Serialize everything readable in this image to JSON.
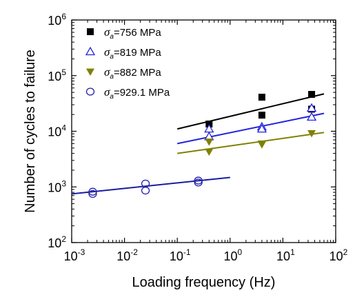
{
  "chart_data": {
    "type": "scatter",
    "title": "",
    "xlabel": "Loading frequency (Hz)",
    "ylabel": "Number of cycles to failure",
    "xscale": "log",
    "yscale": "log",
    "xlim": [
      0.001,
      100
    ],
    "ylim": [
      100,
      1000000
    ],
    "xticks": [
      {
        "value": 0.001,
        "base": "10",
        "exp": "-3"
      },
      {
        "value": 0.01,
        "base": "10",
        "exp": "-2"
      },
      {
        "value": 0.1,
        "base": "10",
        "exp": "-1"
      },
      {
        "value": 1,
        "base": "10",
        "exp": "0"
      },
      {
        "value": 10,
        "base": "10",
        "exp": "1"
      },
      {
        "value": 100,
        "base": "10",
        "exp": "2"
      }
    ],
    "yticks": [
      {
        "value": 100,
        "base": "10",
        "exp": "2"
      },
      {
        "value": 1000,
        "base": "10",
        "exp": "3"
      },
      {
        "value": 10000,
        "base": "10",
        "exp": "4"
      },
      {
        "value": 100000,
        "base": "10",
        "exp": "5"
      },
      {
        "value": 1000000,
        "base": "10",
        "exp": "6"
      }
    ],
    "grid": false,
    "legend_position": "top-left",
    "series": [
      {
        "name": "=756 MPa",
        "symbol": "σ",
        "subscript": "a",
        "marker": "square-filled",
        "color": "#000000",
        "points": [
          {
            "x": 0.4,
            "y": 13500
          },
          {
            "x": 4,
            "y": 41000
          },
          {
            "x": 4,
            "y": 19500
          },
          {
            "x": 35,
            "y": 46000
          },
          {
            "x": 35,
            "y": 25000
          }
        ],
        "fit": {
          "x": [
            0.1,
            60
          ],
          "y": [
            11000,
            47000
          ],
          "color": "#000000"
        }
      },
      {
        "name": "=819 MPa",
        "symbol": "σ",
        "subscript": "a",
        "marker": "triangle-up-open",
        "color": "#2222dd",
        "points": [
          {
            "x": 0.4,
            "y": 11000
          },
          {
            "x": 0.4,
            "y": 8000
          },
          {
            "x": 4,
            "y": 12000
          },
          {
            "x": 4,
            "y": 11000
          },
          {
            "x": 35,
            "y": 26000
          },
          {
            "x": 35,
            "y": 18000
          }
        ],
        "fit": {
          "x": [
            0.1,
            60
          ],
          "y": [
            6000,
            21000
          ],
          "color": "#2222dd"
        }
      },
      {
        "name": "=882 MPa",
        "symbol": "σ",
        "subscript": "a",
        "marker": "triangle-down-filled",
        "color": "#808000",
        "points": [
          {
            "x": 0.4,
            "y": 6500
          },
          {
            "x": 0.4,
            "y": 4300
          },
          {
            "x": 4,
            "y": 6000
          },
          {
            "x": 4,
            "y": 5800
          },
          {
            "x": 35,
            "y": 9200
          }
        ],
        "fit": {
          "x": [
            0.1,
            60
          ],
          "y": [
            4000,
            9500
          ],
          "color": "#808000"
        }
      },
      {
        "name": "=929.1 MPa",
        "symbol": "σ",
        "subscript": "a",
        "marker": "circle-open",
        "color": "#2222aa",
        "points": [
          {
            "x": 0.0025,
            "y": 820
          },
          {
            "x": 0.0025,
            "y": 750
          },
          {
            "x": 0.025,
            "y": 1150
          },
          {
            "x": 0.025,
            "y": 860
          },
          {
            "x": 0.25,
            "y": 1300
          },
          {
            "x": 0.25,
            "y": 1200
          }
        ],
        "fit": {
          "x": [
            0.001,
            1
          ],
          "y": [
            750,
            1480
          ],
          "color": "#1a1aa0"
        }
      }
    ]
  }
}
